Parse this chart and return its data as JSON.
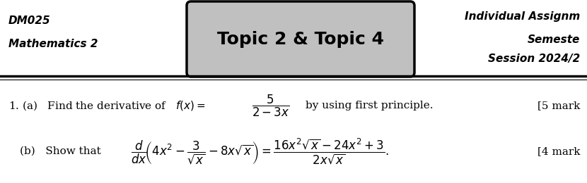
{
  "bg_color": "#ffffff",
  "header_left_line1": "DM025",
  "header_left_line2": "Mathematics 2",
  "header_center": "Topic 2 & Topic 4",
  "header_right_line1": "Individual Assignm",
  "header_right_line2": "Semeste",
  "header_right_line3": "Session 2024/2",
  "q1a_mark": "[5 mark",
  "q1b_mark": "[4 mark",
  "fig_width": 8.3,
  "fig_height": 2.6,
  "dpi": 100
}
